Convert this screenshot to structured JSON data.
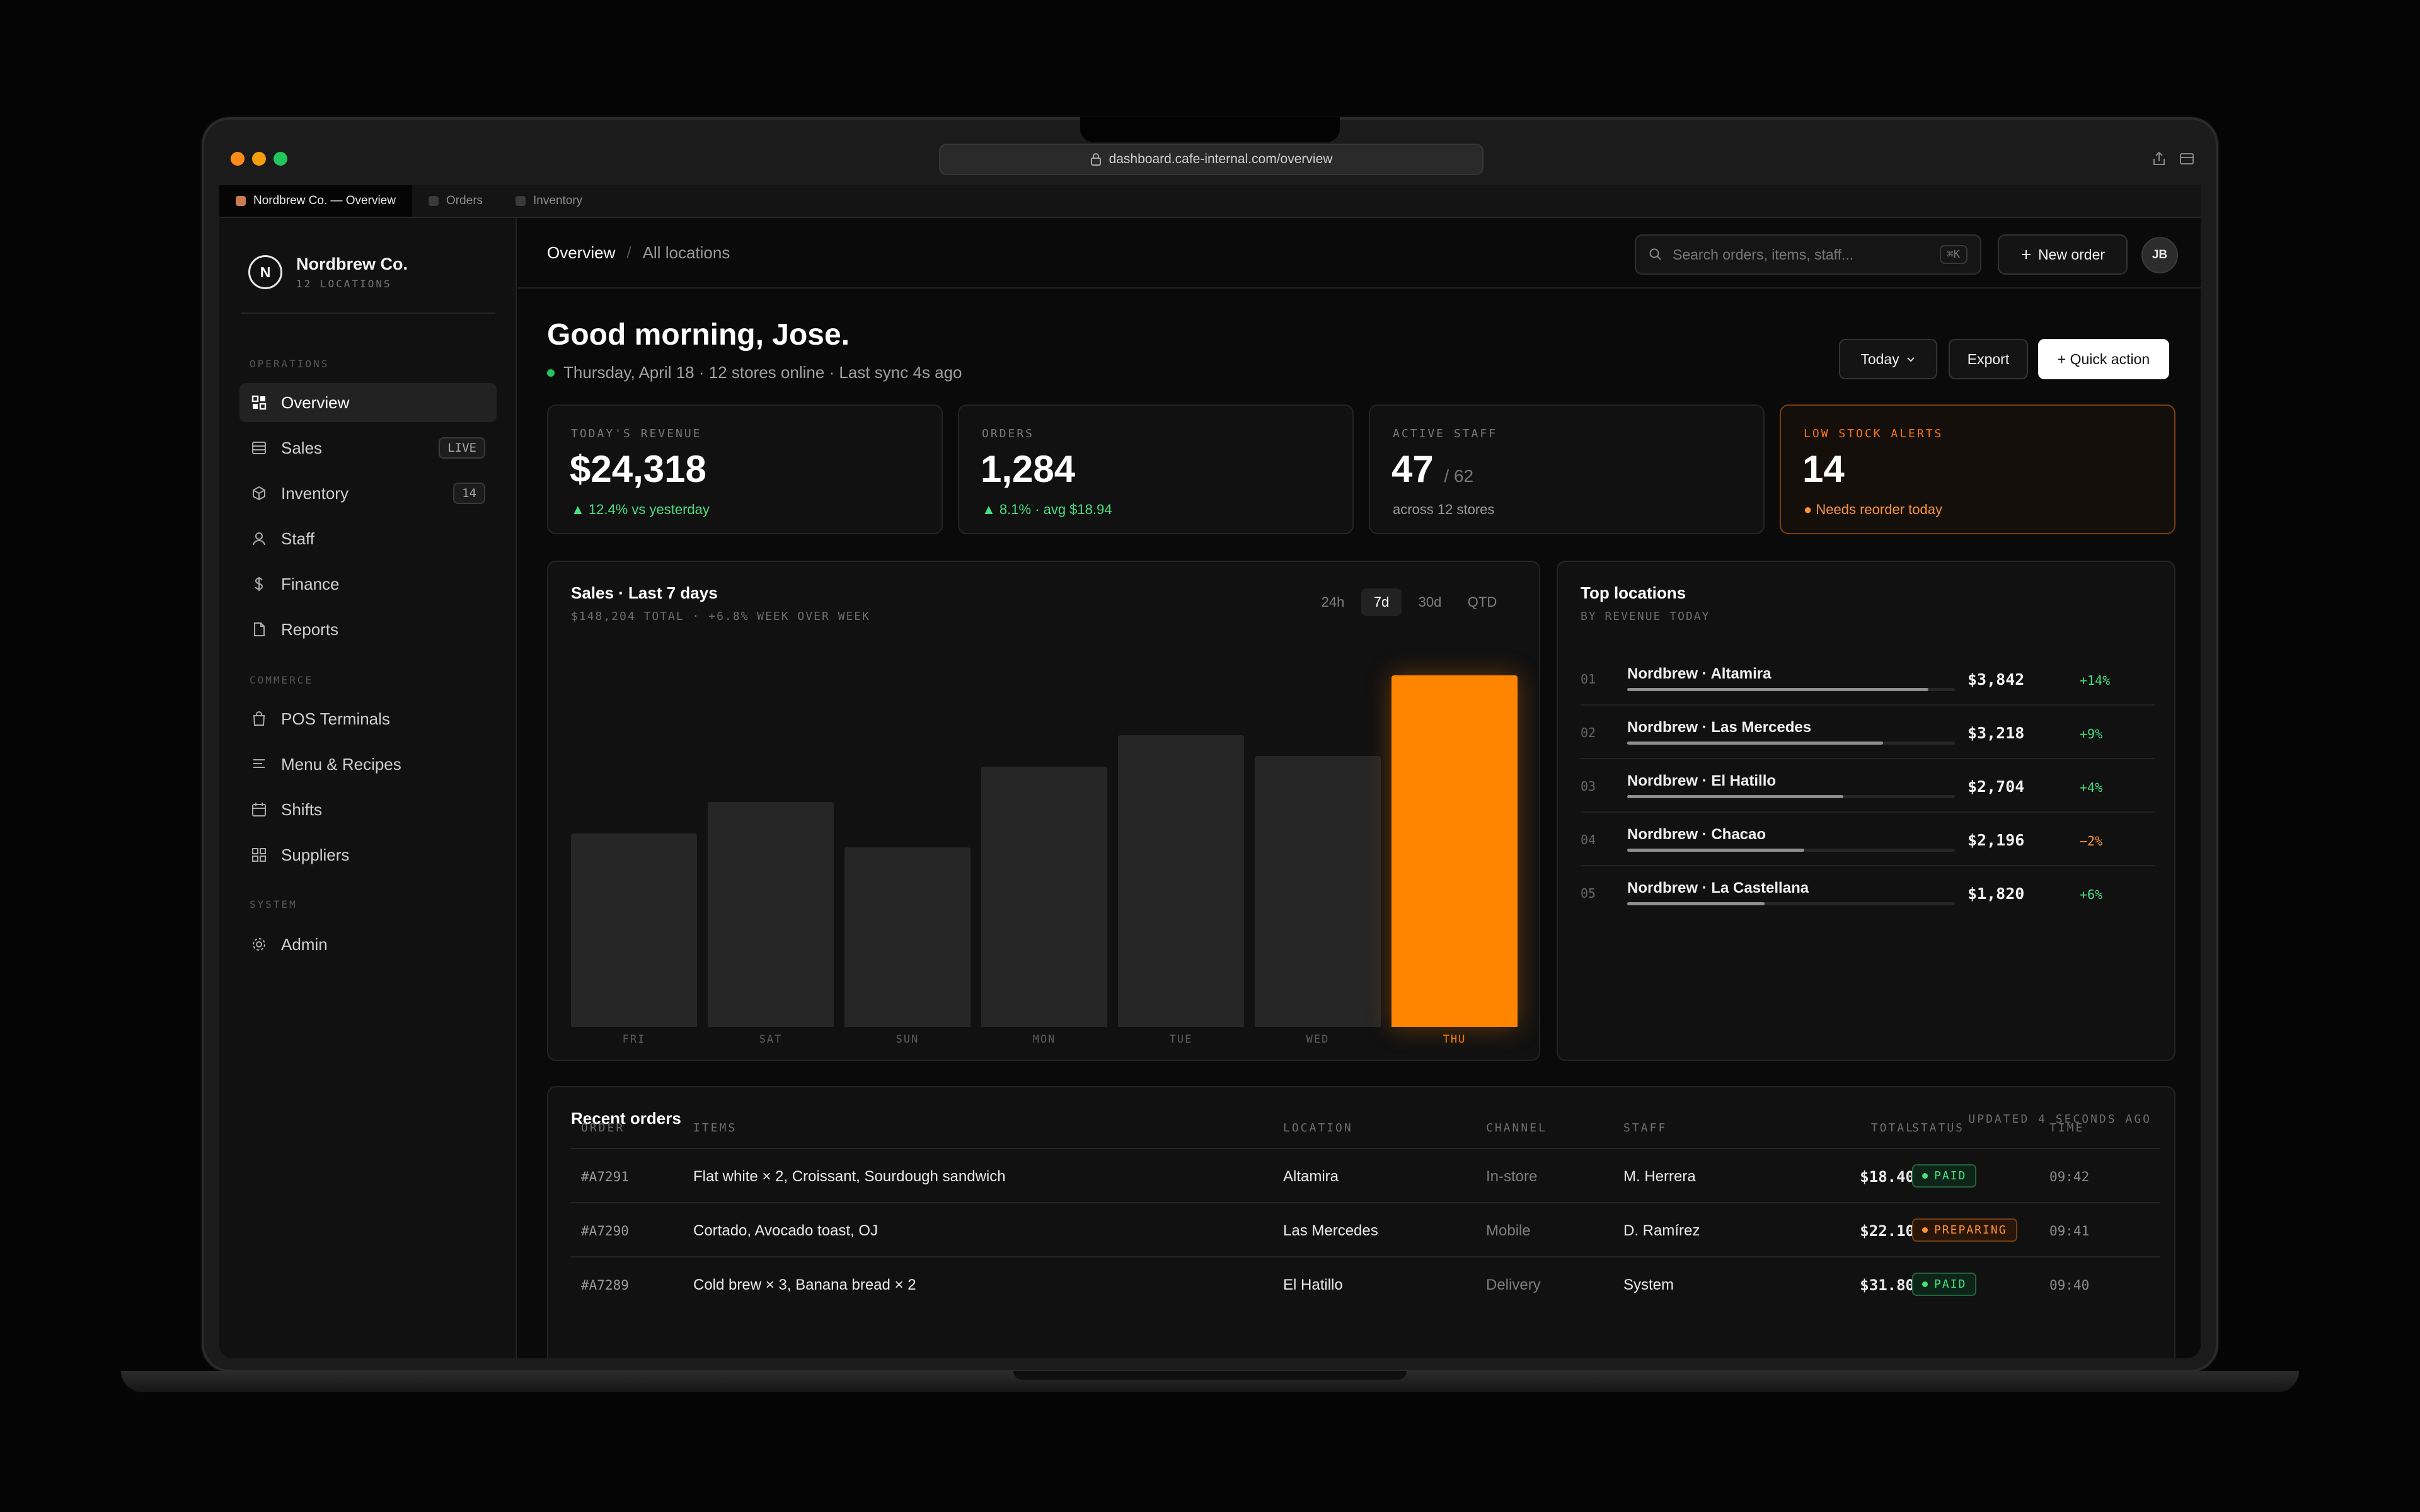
{
  "browser": {
    "url": "dashboard.cafe-internal.com/overview",
    "tabs": [
      "Nordbrew Co. — Overview",
      "Orders",
      "Inventory"
    ]
  },
  "sidebar": {
    "brand_initial": "N",
    "brand_name": "Nordbrew Co.",
    "brand_sub": "12 LOCATIONS",
    "sections": [
      "OPERATIONS",
      "COMMERCE",
      "SYSTEM"
    ],
    "operations": [
      {
        "label": "Overview",
        "icon": "grid-icon"
      },
      {
        "label": "Sales",
        "icon": "list-icon",
        "badge": "LIVE"
      },
      {
        "label": "Inventory",
        "icon": "box-icon",
        "badge": "14"
      },
      {
        "label": "Staff",
        "icon": "user-icon"
      },
      {
        "label": "Finance",
        "icon": "dollar-icon"
      },
      {
        "label": "Reports",
        "icon": "document-icon"
      }
    ],
    "commerce": [
      {
        "label": "POS Terminals",
        "icon": "bag-icon"
      },
      {
        "label": "Menu & Recipes",
        "icon": "lines-icon"
      },
      {
        "label": "Shifts",
        "icon": "calendar-icon"
      },
      {
        "label": "Suppliers",
        "icon": "blocks-icon"
      }
    ],
    "system": [
      {
        "label": "Admin",
        "icon": "gear-icon"
      }
    ]
  },
  "header": {
    "breadcrumb": [
      "Overview",
      "All locations"
    ],
    "search_placeholder": "Search orders, items, staff...",
    "search_shortcut": "⌘K",
    "new_order": "New order",
    "avatar": "JB"
  },
  "greeting": {
    "title": "Good morning, Jose.",
    "subtitle": "Thursday, April 18 · 12 stores online · Last sync 4s ago",
    "today_btn": "Today",
    "export_btn": "Export",
    "quick_btn": "+ Quick action"
  },
  "stats": [
    {
      "label": "TODAY'S REVENUE",
      "value": "$24,318",
      "suffix": "",
      "delta": "▲ 12.4% vs yesterday"
    },
    {
      "label": "ORDERS",
      "value": "1,284",
      "suffix": "",
      "delta": "▲ 8.1% · avg $18.94"
    },
    {
      "label": "ACTIVE STAFF",
      "value": "47",
      "suffix": "/ 62",
      "delta": "across 12 stores"
    },
    {
      "label": "LOW STOCK ALERTS",
      "value": "14",
      "suffix": "",
      "delta": "● Needs reorder today"
    }
  ],
  "chart_data": {
    "type": "bar",
    "title": "Sales · Last 7 days",
    "subtitle": "$148,204 TOTAL · +6.8% WEEK OVER WEEK",
    "ranges": [
      "24h",
      "7d",
      "30d",
      "QTD"
    ],
    "selected_range": "7d",
    "categories": [
      "FRI",
      "SAT",
      "SUN",
      "MON",
      "TUE",
      "WED",
      "THU"
    ],
    "values": [
      55,
      64,
      51,
      74,
      83,
      77,
      100
    ],
    "highlight": "THU",
    "ylim": [
      0,
      100
    ],
    "xlabel": "",
    "ylabel": ""
  },
  "top_locations": {
    "title": "Top locations",
    "subtitle": "BY REVENUE TODAY",
    "items": [
      {
        "rank": "01",
        "name": "Nordbrew · Altamira",
        "amount": "$3,842",
        "change": "+14%",
        "share": 0.92
      },
      {
        "rank": "02",
        "name": "Nordbrew · Las Mercedes",
        "amount": "$3,218",
        "change": "+9%",
        "share": 0.78
      },
      {
        "rank": "03",
        "name": "Nordbrew · El Hatillo",
        "amount": "$2,704",
        "change": "+4%",
        "share": 0.66
      },
      {
        "rank": "04",
        "name": "Nordbrew · Chacao",
        "amount": "$2,196",
        "change": "−2%",
        "share": 0.54
      },
      {
        "rank": "05",
        "name": "Nordbrew · La Castellana",
        "amount": "$1,820",
        "change": "+6%",
        "share": 0.42
      }
    ]
  },
  "orders": {
    "title": "Recent orders",
    "updated": "UPDATED 4 SECONDS AGO",
    "columns": [
      "ORDER",
      "ITEMS",
      "LOCATION",
      "CHANNEL",
      "STAFF",
      "TOTAL",
      "STATUS",
      "TIME"
    ],
    "rows": [
      {
        "id": "#A7291",
        "items": "Flat white × 2, Croissant, Sourdough sandwich",
        "location": "Altamira",
        "channel": "In-store",
        "staff": "M. Herrera",
        "total": "$18.40",
        "status": "PAID",
        "time": "09:42"
      },
      {
        "id": "#A7290",
        "items": "Cortado, Avocado toast, OJ",
        "location": "Las Mercedes",
        "channel": "Mobile",
        "staff": "D. Ramírez",
        "total": "$22.10",
        "status": "PREPARING",
        "time": "09:41"
      },
      {
        "id": "#A7289",
        "items": "Cold brew × 3, Banana bread × 2",
        "location": "El Hatillo",
        "channel": "Delivery",
        "staff": "System",
        "total": "$31.80",
        "status": "PAID",
        "time": "09:40"
      }
    ]
  },
  "colors": {
    "accent": "#ff8400",
    "positive": "#4ade80",
    "warning": "#fb923c"
  }
}
